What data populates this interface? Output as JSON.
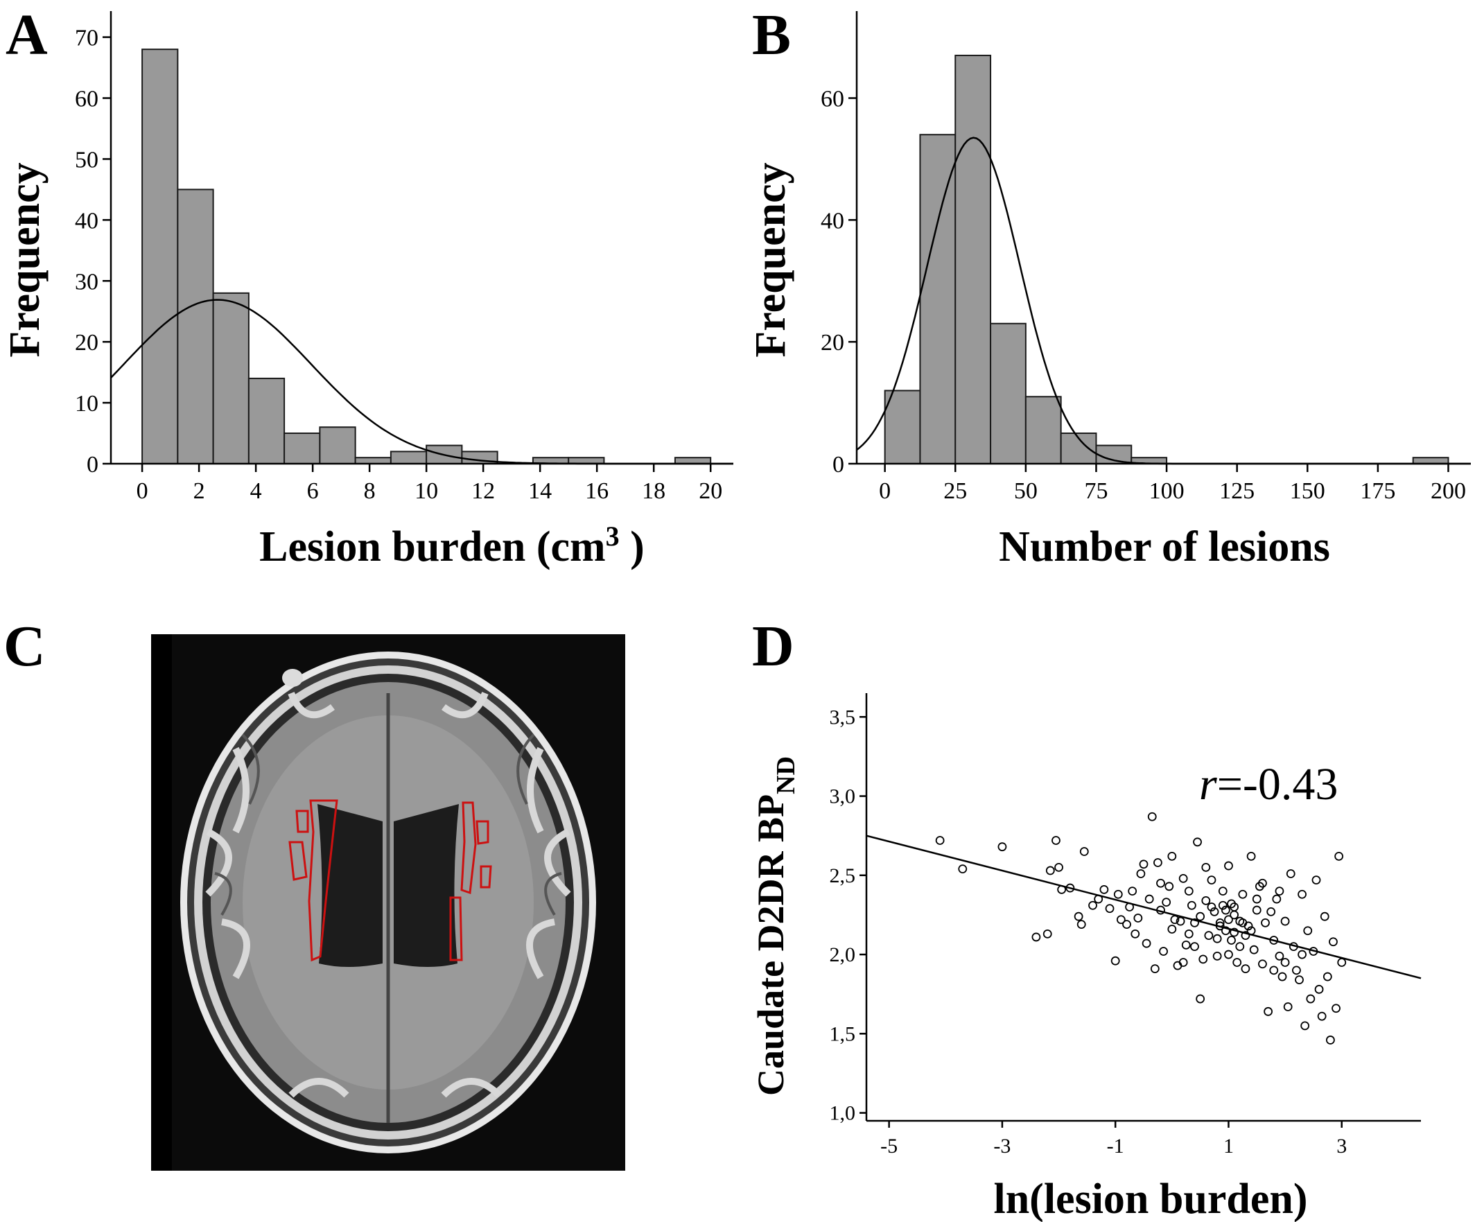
{
  "panels": {
    "A": {
      "letter": "A"
    },
    "B": {
      "letter": "B"
    },
    "C": {
      "letter": "C"
    },
    "D": {
      "letter": "D"
    }
  },
  "annotation": {
    "r_symbol": "r",
    "r_value": "=-0.43"
  },
  "image_c": {
    "description_icon": "brain-mri-icon",
    "outline_color": "#cc1111"
  },
  "chart_data": [
    {
      "id": "A",
      "type": "bar",
      "xlabel": "Lesion burden (cm",
      "xlabel_sup": "3",
      "xlabel_end": " )",
      "ylabel": "Frequency",
      "bin_edges": [
        0,
        1.25,
        2.5,
        3.75,
        5,
        6.25,
        7.5,
        8.75,
        10,
        11.25,
        12.5,
        13.75,
        15,
        16.25,
        17.5,
        18.75,
        20
      ],
      "values": [
        68,
        45,
        28,
        14,
        5,
        6,
        1,
        2,
        3,
        2,
        0,
        1,
        1,
        0,
        0,
        1
      ],
      "xlim": [
        -1.1,
        20.8
      ],
      "ylim": [
        0,
        72
      ],
      "xticks": [
        0,
        2,
        4,
        6,
        8,
        10,
        12,
        14,
        16,
        18,
        20
      ],
      "yticks": [
        0,
        10,
        20,
        30,
        40,
        50,
        60,
        70
      ],
      "normal_curve": {
        "mean": 2.65,
        "sd": 3.3,
        "n": 178,
        "binwidth": 1.25
      }
    },
    {
      "id": "B",
      "type": "bar",
      "xlabel": "Number of lesions",
      "ylabel": "Frequency",
      "bin_edges": [
        0,
        12.5,
        25,
        37.5,
        50,
        62.5,
        75,
        87.5,
        100,
        112.5,
        125,
        137.5,
        150,
        162.5,
        175,
        187.5,
        200
      ],
      "values": [
        12,
        54,
        67,
        23,
        11,
        5,
        3,
        1,
        0,
        0,
        0,
        0,
        0,
        0,
        0,
        1
      ],
      "xlim": [
        -10,
        208
      ],
      "ylim": [
        0,
        72
      ],
      "xticks": [
        0,
        25,
        50,
        75,
        100,
        125,
        150,
        175,
        200
      ],
      "yticks": [
        0,
        20,
        40,
        60
      ],
      "normal_curve": {
        "mean": 31.5,
        "sd": 16.5,
        "n": 177,
        "binwidth": 12.5
      }
    },
    {
      "id": "D",
      "type": "scatter",
      "xlabel": "ln(lesion burden)",
      "ylabel": "Caudate D2DR BP",
      "ylabel_sub": "ND",
      "xlim": [
        -5.4,
        4.4
      ],
      "ylim": [
        0.95,
        3.65
      ],
      "xticks": [
        -5,
        -3,
        -1,
        1,
        3
      ],
      "yticks": [
        1.0,
        1.5,
        2.0,
        2.5,
        3.0,
        3.5
      ],
      "ytick_labels": [
        "1,0",
        "1,5",
        "2,0",
        "2,5",
        "3,0",
        "3,5"
      ],
      "fit_line": {
        "x": [
          -5.4,
          4.4
        ],
        "y": [
          2.75,
          1.85
        ]
      },
      "points": [
        [
          -4.1,
          2.72
        ],
        [
          -3.7,
          2.54
        ],
        [
          -3.0,
          2.68
        ],
        [
          -2.4,
          2.11
        ],
        [
          -2.2,
          2.13
        ],
        [
          -2.15,
          2.53
        ],
        [
          -2.05,
          2.72
        ],
        [
          -2.0,
          2.55
        ],
        [
          -1.95,
          2.41
        ],
        [
          -1.8,
          2.42
        ],
        [
          -1.65,
          2.24
        ],
        [
          -1.6,
          2.19
        ],
        [
          -1.55,
          2.65
        ],
        [
          -1.4,
          2.31
        ],
        [
          -1.3,
          2.35
        ],
        [
          -1.2,
          2.41
        ],
        [
          -1.1,
          2.29
        ],
        [
          -1.0,
          1.96
        ],
        [
          -0.95,
          2.38
        ],
        [
          -0.9,
          2.22
        ],
        [
          -0.8,
          2.19
        ],
        [
          -0.75,
          2.3
        ],
        [
          -0.7,
          2.4
        ],
        [
          -0.65,
          2.13
        ],
        [
          -0.6,
          2.23
        ],
        [
          -0.55,
          2.51
        ],
        [
          -0.5,
          2.57
        ],
        [
          -0.45,
          2.07
        ],
        [
          -0.4,
          2.35
        ],
        [
          -0.35,
          2.87
        ],
        [
          -0.3,
          1.91
        ],
        [
          -0.25,
          2.58
        ],
        [
          -0.2,
          2.28
        ],
        [
          -0.15,
          2.02
        ],
        [
          -0.1,
          2.33
        ],
        [
          -0.05,
          2.43
        ],
        [
          0.0,
          2.16
        ],
        [
          0.05,
          2.22
        ],
        [
          0.1,
          1.93
        ],
        [
          0.15,
          2.21
        ],
        [
          0.2,
          2.48
        ],
        [
          0.25,
          2.06
        ],
        [
          0.3,
          2.13
        ],
        [
          0.35,
          2.31
        ],
        [
          0.4,
          2.05
        ],
        [
          0.45,
          2.71
        ],
        [
          0.5,
          2.24
        ],
        [
          0.55,
          1.97
        ],
        [
          0.6,
          2.34
        ],
        [
          0.65,
          2.12
        ],
        [
          0.7,
          2.47
        ],
        [
          0.75,
          2.27
        ],
        [
          0.8,
          1.99
        ],
        [
          0.85,
          2.2
        ],
        [
          0.9,
          2.4
        ],
        [
          0.95,
          2.15
        ],
        [
          1.0,
          2.56
        ],
        [
          1.05,
          2.09
        ],
        [
          1.1,
          2.3
        ],
        [
          1.15,
          1.95
        ],
        [
          1.2,
          2.21
        ],
        [
          1.25,
          2.38
        ],
        [
          1.3,
          1.91
        ],
        [
          1.35,
          2.18
        ],
        [
          1.4,
          2.62
        ],
        [
          1.45,
          2.03
        ],
        [
          1.5,
          2.28
        ],
        [
          1.55,
          2.43
        ],
        [
          1.6,
          1.94
        ],
        [
          1.65,
          2.2
        ],
        [
          1.7,
          1.64
        ],
        [
          1.75,
          2.27
        ],
        [
          1.8,
          2.09
        ],
        [
          1.85,
          2.35
        ],
        [
          1.9,
          1.99
        ],
        [
          1.95,
          1.86
        ],
        [
          2.0,
          2.21
        ],
        [
          2.05,
          1.67
        ],
        [
          2.1,
          2.51
        ],
        [
          2.15,
          2.05
        ],
        [
          2.2,
          1.9
        ],
        [
          2.25,
          1.84
        ],
        [
          2.3,
          2.38
        ],
        [
          2.35,
          1.55
        ],
        [
          2.4,
          2.15
        ],
        [
          2.45,
          1.72
        ],
        [
          2.5,
          2.02
        ],
        [
          2.55,
          2.47
        ],
        [
          2.6,
          1.78
        ],
        [
          2.65,
          1.61
        ],
        [
          2.7,
          2.24
        ],
        [
          2.75,
          1.86
        ],
        [
          2.8,
          1.46
        ],
        [
          2.85,
          2.08
        ],
        [
          2.9,
          1.66
        ],
        [
          2.95,
          2.62
        ],
        [
          3.0,
          1.95
        ],
        [
          0.2,
          1.95
        ],
        [
          0.5,
          1.72
        ],
        [
          1.0,
          2.22
        ],
        [
          1.1,
          2.25
        ],
        [
          0.9,
          2.31
        ],
        [
          1.3,
          2.12
        ],
        [
          1.5,
          2.35
        ],
        [
          0.3,
          2.4
        ],
        [
          0.7,
          2.3
        ],
        [
          0.8,
          2.1
        ],
        [
          1.9,
          2.4
        ],
        [
          2.3,
          2.0
        ],
        [
          1.2,
          2.05
        ],
        [
          1.6,
          2.45
        ],
        [
          0.0,
          2.62
        ],
        [
          -0.2,
          2.45
        ],
        [
          0.6,
          2.55
        ],
        [
          1.4,
          2.15
        ],
        [
          2.0,
          1.95
        ],
        [
          1.8,
          1.9
        ],
        [
          1.0,
          2.0
        ],
        [
          0.4,
          2.2
        ],
        [
          1.1,
          2.14
        ],
        [
          0.95,
          2.28
        ],
        [
          1.25,
          2.2
        ],
        [
          1.05,
          2.32
        ],
        [
          0.85,
          2.18
        ]
      ]
    }
  ]
}
